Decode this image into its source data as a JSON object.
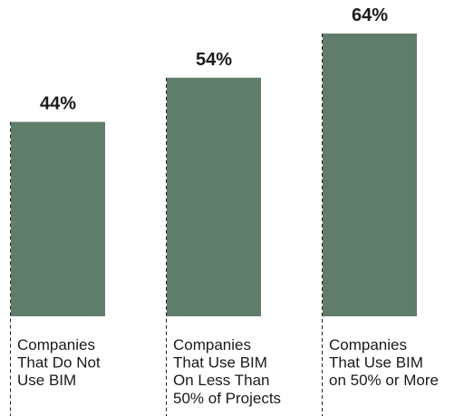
{
  "chart_data": {
    "type": "bar",
    "categories": [
      [
        "Companies",
        "That Do Not",
        "Use BIM"
      ],
      [
        "Companies",
        "That Use BIM",
        "On Less Than",
        "50% of Projects"
      ],
      [
        "Companies",
        "That Use BIM",
        "on 50% or More"
      ]
    ],
    "values": [
      44,
      54,
      64
    ],
    "data_labels": [
      "44%",
      "54%",
      "64%"
    ],
    "ylim": [
      0,
      64
    ],
    "grid": false,
    "bar_color": "#607d6c"
  }
}
